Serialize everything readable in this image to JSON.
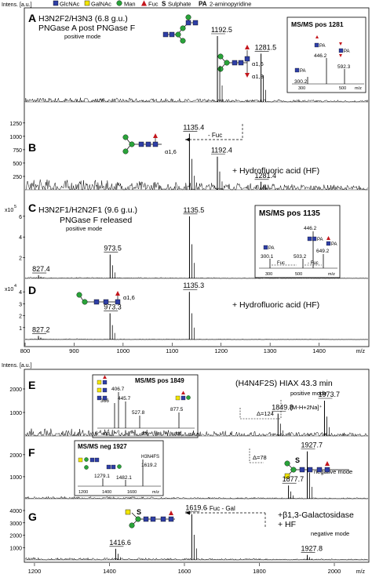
{
  "legend": {
    "items": [
      {
        "label": "GlcNAc",
        "shape": "square",
        "color": "#2f3fa6"
      },
      {
        "label": "GalNAc",
        "shape": "square",
        "color": "#f2e600"
      },
      {
        "label": "Man",
        "shape": "circle",
        "color": "#2aa33a"
      },
      {
        "label": "Fuc",
        "shape": "triangle",
        "color": "#c4161c"
      },
      {
        "label": "Sulphate",
        "prefix": "S",
        "shape": "text"
      },
      {
        "label": "2-aminopyridine",
        "prefix": "PA",
        "shape": "text"
      }
    ]
  },
  "chart_data": [
    {
      "type": "line",
      "panel": "A",
      "ylabel": "Intens. [a.u.]",
      "title": "H3N2F2/H3N3 (6.8 g.u.)",
      "subtitle": "PNGase A post PNGase F",
      "mode": "positive mode",
      "xlim": [
        800,
        1500
      ],
      "peaks": [
        {
          "x": 1192.5,
          "y": 0.75,
          "label": "1192.5"
        },
        {
          "x": 1281.5,
          "y": 0.55,
          "label": "1281.5"
        }
      ],
      "linkage_labels": [
        "α1,6",
        "α1,3"
      ],
      "inset": {
        "title": "MS/MS pos 1281",
        "xticks": [
          "300",
          "500",
          "m/z"
        ],
        "peaks": [
          {
            "label": "300.2"
          },
          {
            "label": "446.2"
          },
          {
            "label": "592.3"
          }
        ],
        "ion_labels": [
          "PA",
          "PA",
          "PA"
        ]
      }
    },
    {
      "type": "line",
      "panel": "B",
      "annotation": "+ Hydrofluoric acid (HF)",
      "loss_label": "- Fuc",
      "linkage_label": "α1,6",
      "yticks": [
        "1250",
        "1000",
        "750",
        "500",
        "250"
      ],
      "ylim": [
        0,
        1350
      ],
      "xlim": [
        800,
        1500
      ],
      "peaks": [
        {
          "x": 1135.4,
          "y": 1050,
          "label": "1135.4"
        },
        {
          "x": 1192.4,
          "y": 620,
          "label": "1192.4"
        },
        {
          "x": 1281.4,
          "y": 150,
          "label": "1281.4"
        }
      ]
    },
    {
      "type": "line",
      "panel": "C",
      "title": "H3N2F1/H2N2F1 (9.6 g.u.)",
      "subtitle": "PNGase F released",
      "mode": "positive mode",
      "yticks": [
        "6",
        "4",
        "2"
      ],
      "yexp": "x10",
      "yexp_power": "5",
      "ylim": [
        0,
        7.2
      ],
      "xlim": [
        800,
        1500
      ],
      "peaks": [
        {
          "x": 827.4,
          "y": 0.3,
          "label": "827.4"
        },
        {
          "x": 973.5,
          "y": 2.3,
          "label": "973.5"
        },
        {
          "x": 1135.5,
          "y": 6.0,
          "label": "1135.5"
        }
      ],
      "inset": {
        "title": "MS/MS pos 1135",
        "xticks": [
          "300",
          "500",
          "m/z"
        ],
        "losses": [
          "Fuc",
          "- Fuc"
        ],
        "peaks": [
          {
            "label": "300.1"
          },
          {
            "label": "446.2"
          },
          {
            "label": "503.2"
          },
          {
            "label": "649.2"
          }
        ],
        "ion_labels": [
          "PA",
          "PA",
          "PA"
        ]
      }
    },
    {
      "type": "line",
      "panel": "D",
      "annotation": "+ Hydrofluoric acid (HF)",
      "linkage_label": "α1,6",
      "yticks": [
        "4",
        "3",
        "2",
        "1"
      ],
      "yexp": "x10",
      "yexp_power": "4",
      "ylim": [
        0,
        4.8
      ],
      "xlim": [
        800,
        1500
      ],
      "xticks": [
        "800",
        "900",
        "1000",
        "1100",
        "1200",
        "1300",
        "1400"
      ],
      "xunit": "m/z",
      "peaks": [
        {
          "x": 827.2,
          "y": 0.3,
          "label": "827.2"
        },
        {
          "x": 973.3,
          "y": 2.2,
          "label": "973.3"
        },
        {
          "x": 1135.3,
          "y": 4.0,
          "label": "1135.3"
        }
      ]
    },
    {
      "type": "line",
      "panel": "E",
      "ylabel": "Intens. [a.u.]",
      "title": "(H4N4F2S) HIAX 43.3 min",
      "mode": "positive mode",
      "yticks": [
        "2000",
        "1000"
      ],
      "ylim": [
        0,
        2600
      ],
      "xlim": [
        1175,
        2090
      ],
      "peaks": [
        {
          "x": 1849.8,
          "y": 950,
          "label": "1849.8"
        },
        {
          "x": 1973.7,
          "y": 1500,
          "label": "1973.7"
        }
      ],
      "delta_label": "Δ=124",
      "ion_label": "[M-H+2Na]⁺",
      "inset": {
        "title": "MS/MS pos 1849",
        "xticks": [
          "400",
          "600",
          "800",
          "m/z"
        ],
        "peaks": [
          {
            "label": "366"
          },
          {
            "label": "406.7"
          },
          {
            "label": "445.7"
          },
          {
            "label": "527.8"
          },
          {
            "label": "877.5"
          }
        ]
      }
    },
    {
      "type": "line",
      "panel": "F",
      "mode": "negative mode",
      "yticks": [
        "2000",
        "1000"
      ],
      "ylim": [
        0,
        2600
      ],
      "xlim": [
        1175,
        2090
      ],
      "peaks": [
        {
          "x": 1877.7,
          "y": 600,
          "label": "1877.7"
        },
        {
          "x": 1927.7,
          "y": 2150,
          "label": "1927.7"
        }
      ],
      "delta_label": "Δ=78",
      "sulphate_label": "S",
      "inset": {
        "title": "MS/MS neg 1927",
        "xticks": [
          "1200",
          "1400",
          "1600",
          "m/z"
        ],
        "peaks": [
          {
            "label": "1279.1"
          },
          {
            "label": "1482.1"
          },
          {
            "label": "1619.2"
          }
        ],
        "composition": "H3N4FS"
      }
    },
    {
      "type": "line",
      "panel": "G",
      "annotation": "+β1,3-Galactosidase",
      "annotation2": "+ HF",
      "mode": "negative mode",
      "loss_label": "- Fuc - Gal",
      "sulphate_label": "S",
      "yticks": [
        "4000",
        "3000",
        "2000",
        "1000"
      ],
      "ylim": [
        0,
        4700
      ],
      "xlim": [
        1175,
        2090
      ],
      "xticks": [
        "1200",
        "1400",
        "1600",
        "1800",
        "2000"
      ],
      "xunit": "m/z",
      "peaks": [
        {
          "x": 1416.6,
          "y": 900,
          "label": "1416.6"
        },
        {
          "x": 1619.6,
          "y": 3700,
          "label": "1619.6"
        },
        {
          "x": 1927.8,
          "y": 400,
          "label": "1927.8"
        }
      ]
    }
  ]
}
